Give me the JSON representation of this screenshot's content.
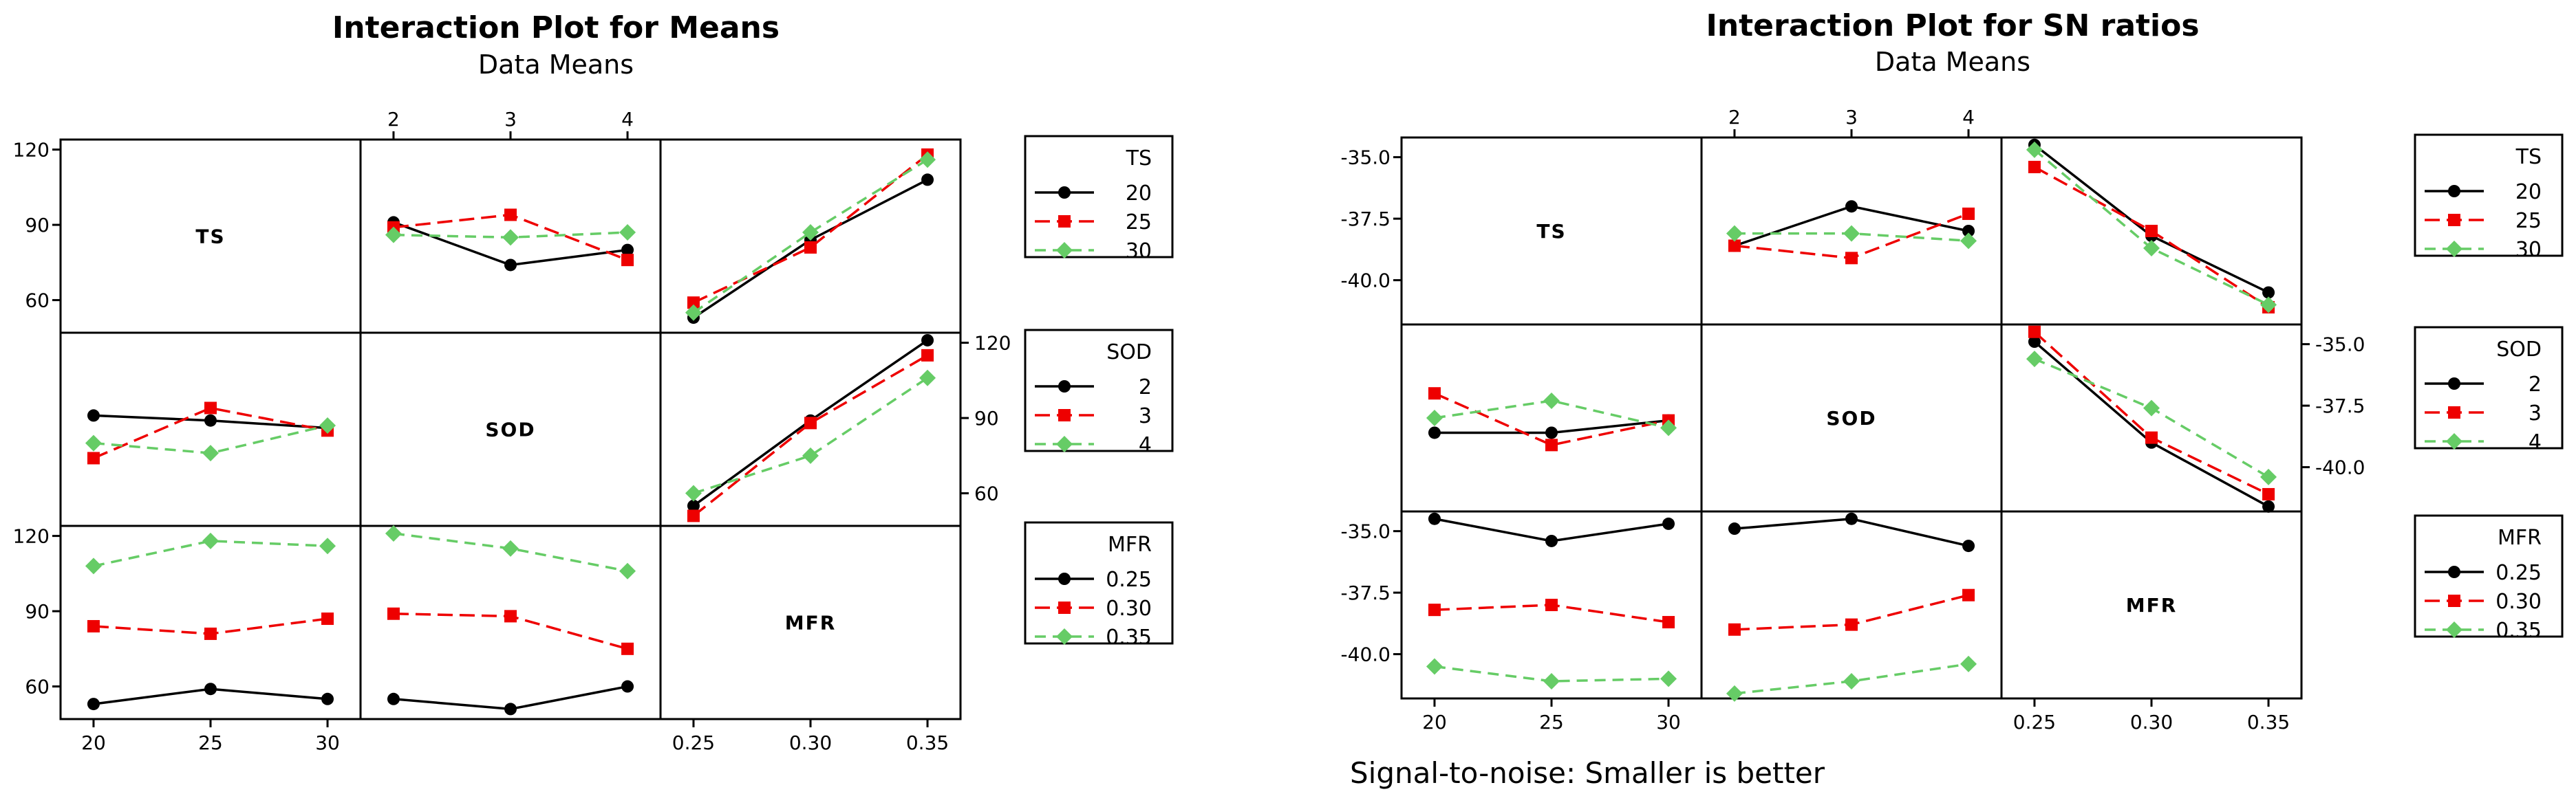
{
  "chart_data": [
    {
      "type": "line",
      "title": "Interaction Plot for Means",
      "subtitle": "Data Means",
      "factors": [
        {
          "name": "TS",
          "levels": [
            "20",
            "25",
            "30"
          ],
          "tick_labels": [
            "20",
            "25",
            "30"
          ]
        },
        {
          "name": "SOD",
          "levels": [
            "2",
            "3",
            "4"
          ],
          "tick_labels": [
            "2",
            "3",
            "4"
          ]
        },
        {
          "name": "MFR",
          "levels": [
            "0.25",
            "0.30",
            "0.35"
          ],
          "tick_labels": [
            "0.25",
            "0.30",
            "0.35"
          ]
        }
      ],
      "y_ticks": [
        60,
        90,
        120
      ],
      "y_range": [
        47,
        124
      ],
      "legends": [
        {
          "title": "TS",
          "entries": [
            "20",
            "25",
            "30"
          ]
        },
        {
          "title": "SOD",
          "entries": [
            "2",
            "3",
            "4"
          ]
        },
        {
          "title": "MFR",
          "entries": [
            "0.25",
            "0.30",
            "0.35"
          ]
        }
      ],
      "cells": [
        {
          "row": "TS",
          "col": "SOD",
          "series": [
            [
              91,
              74,
              80
            ],
            [
              89,
              94,
              76
            ],
            [
              86,
              85,
              87
            ]
          ]
        },
        {
          "row": "TS",
          "col": "MFR",
          "series": [
            [
              53,
              84,
              108
            ],
            [
              59,
              81,
              118
            ],
            [
              55,
              87,
              116
            ]
          ]
        },
        {
          "row": "SOD",
          "col": "TS",
          "series": [
            [
              91,
              89,
              86
            ],
            [
              74,
              94,
              85
            ],
            [
              80,
              76,
              87
            ]
          ]
        },
        {
          "row": "SOD",
          "col": "MFR",
          "series": [
            [
              55,
              89,
              121
            ],
            [
              51,
              88,
              115
            ],
            [
              60,
              75,
              106
            ]
          ]
        },
        {
          "row": "MFR",
          "col": "TS",
          "series": [
            [
              53,
              59,
              55
            ],
            [
              84,
              81,
              87
            ],
            [
              108,
              118,
              116
            ]
          ]
        },
        {
          "row": "MFR",
          "col": "SOD",
          "series": [
            [
              55,
              51,
              60
            ],
            [
              89,
              88,
              75
            ],
            [
              121,
              115,
              106
            ]
          ]
        }
      ]
    },
    {
      "type": "line",
      "title": "Interaction Plot for SN ratios",
      "subtitle": "Data Means",
      "footnote": "Signal-to-noise: Smaller is better",
      "factors": [
        {
          "name": "TS",
          "levels": [
            "20",
            "25",
            "30"
          ],
          "tick_labels": [
            "20",
            "25",
            "30"
          ]
        },
        {
          "name": "SOD",
          "levels": [
            "2",
            "3",
            "4"
          ],
          "tick_labels": [
            "2",
            "3",
            "4"
          ]
        },
        {
          "name": "MFR",
          "levels": [
            "0.25",
            "0.30",
            "0.35"
          ],
          "tick_labels": [
            "0.25",
            "0.30",
            "0.35"
          ]
        }
      ],
      "y_ticks": [
        -35.0,
        -37.5,
        -40.0
      ],
      "y_tick_labels": [
        "-35.0",
        "-37.5",
        "-40.0"
      ],
      "y_range": [
        -41.8,
        -34.2
      ],
      "legends": [
        {
          "title": "TS",
          "entries": [
            "20",
            "25",
            "30"
          ]
        },
        {
          "title": "SOD",
          "entries": [
            "2",
            "3",
            "4"
          ]
        },
        {
          "title": "MFR",
          "entries": [
            "0.25",
            "0.30",
            "0.35"
          ]
        }
      ],
      "cells": [
        {
          "row": "TS",
          "col": "SOD",
          "series": [
            [
              -38.6,
              -37.0,
              -38.0
            ],
            [
              -38.6,
              -39.1,
              -37.3
            ],
            [
              -38.1,
              -38.1,
              -38.4
            ]
          ]
        },
        {
          "row": "TS",
          "col": "MFR",
          "series": [
            [
              -34.5,
              -38.2,
              -40.5
            ],
            [
              -35.4,
              -38.0,
              -41.1
            ],
            [
              -34.7,
              -38.7,
              -41.0
            ]
          ]
        },
        {
          "row": "SOD",
          "col": "TS",
          "series": [
            [
              -38.6,
              -38.6,
              -38.1
            ],
            [
              -37.0,
              -39.1,
              -38.1
            ],
            [
              -38.0,
              -37.3,
              -38.4
            ]
          ]
        },
        {
          "row": "SOD",
          "col": "MFR",
          "series": [
            [
              -34.9,
              -39.0,
              -41.6
            ],
            [
              -34.5,
              -38.8,
              -41.1
            ],
            [
              -35.6,
              -37.6,
              -40.4
            ]
          ]
        },
        {
          "row": "MFR",
          "col": "TS",
          "series": [
            [
              -34.5,
              -35.4,
              -34.7
            ],
            [
              -38.2,
              -38.0,
              -38.7
            ],
            [
              -40.5,
              -41.1,
              -41.0
            ]
          ]
        },
        {
          "row": "MFR",
          "col": "SOD",
          "series": [
            [
              -34.9,
              -34.5,
              -35.6
            ],
            [
              -39.0,
              -38.8,
              -37.6
            ],
            [
              -41.6,
              -41.1,
              -40.4
            ]
          ]
        }
      ]
    }
  ],
  "colors": {
    "series": [
      "#000000",
      "#ee0000",
      "#66cc66"
    ],
    "frame": "#000000"
  }
}
